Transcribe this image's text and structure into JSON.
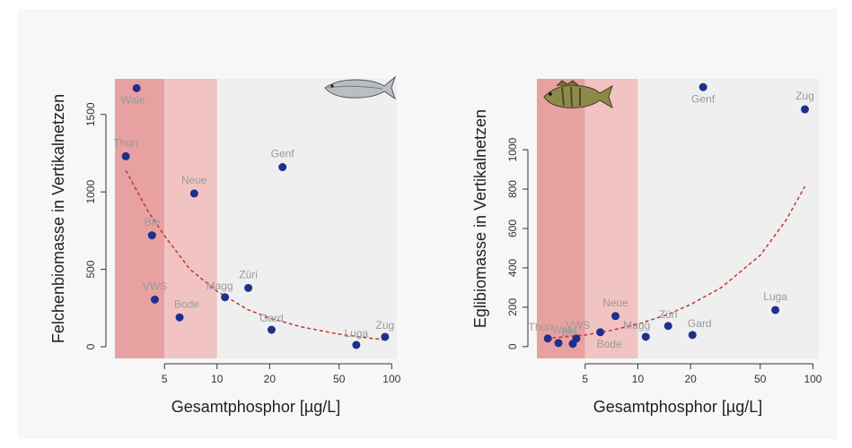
{
  "chart_data": [
    {
      "type": "scatter",
      "xlabel": "Gesamtphosphor [µg/L]",
      "ylabel": "Felchenbiomasse in Vertikalnetzen",
      "log_x": true,
      "xlim": [
        2.6,
        107
      ],
      "ylim": [
        -75,
        1730
      ],
      "xticks": [
        5,
        10,
        20,
        50,
        100
      ],
      "yticks": [
        0,
        500,
        1000,
        1500
      ],
      "bands": [
        {
          "range": [
            2.6,
            5
          ],
          "color": "#e8a1a1"
        },
        {
          "range": [
            5,
            10
          ],
          "color": "#f2c3c3"
        }
      ],
      "color": "#1f2f8c",
      "fit_color": "#c0392b",
      "labels": [
        "Wale",
        "Thun",
        "Neue",
        "Genf",
        "Bie",
        "VWS",
        "Bode",
        "Magg",
        "Züri",
        "Gard",
        "Luga",
        "Zug"
      ],
      "x": [
        3.46,
        3.0,
        7.4,
        23.7,
        4.24,
        4.4,
        6.1,
        11.1,
        15.1,
        20.5,
        62.7,
        91.6
      ],
      "values": [
        1670,
        1230,
        990,
        1160,
        720,
        305,
        190,
        320,
        380,
        110,
        12,
        64
      ],
      "fit_x": [
        3,
        4,
        5,
        7,
        10,
        15,
        20,
        30,
        50,
        70,
        90
      ],
      "fit_y": [
        1139,
        880,
        717,
        500,
        358,
        240,
        185,
        130,
        81,
        60,
        46
      ]
    },
    {
      "type": "scatter",
      "xlabel": "Gesamtphosphor [µg/L]",
      "ylabel": "Eglibiomasse in Vertikalnetzen",
      "log_x": true,
      "xlim": [
        2.65,
        108
      ],
      "ylim": [
        -60,
        1360
      ],
      "xticks": [
        5,
        10,
        20,
        50,
        100
      ],
      "yticks": [
        0,
        200,
        400,
        600,
        800,
        1000
      ],
      "bands": [
        {
          "range": [
            2.65,
            5
          ],
          "color": "#e8a1a1"
        },
        {
          "range": [
            5,
            10
          ],
          "color": "#f2c3c3"
        }
      ],
      "color": "#1f2f8c",
      "fit_color": "#c0392b",
      "labels": [
        "Thun",
        "Wale",
        "Bie",
        "VWS",
        "Bode",
        "Neue",
        "Magg",
        "Züri",
        "Gard",
        "Genf",
        "Luga",
        "Zug"
      ],
      "x": [
        3.06,
        3.52,
        4.25,
        4.45,
        6.1,
        7.45,
        11.1,
        14.9,
        20.5,
        23.6,
        61,
        90
      ],
      "values": [
        41,
        18,
        14,
        41,
        73,
        155,
        50,
        105,
        59,
        1318,
        186,
        1205
      ],
      "fit_x": [
        3,
        5,
        7,
        10,
        15,
        20,
        30,
        50,
        70,
        90
      ],
      "fit_y": [
        41,
        59,
        82,
        114,
        165,
        214,
        300,
        464,
        640,
        814
      ]
    }
  ]
}
